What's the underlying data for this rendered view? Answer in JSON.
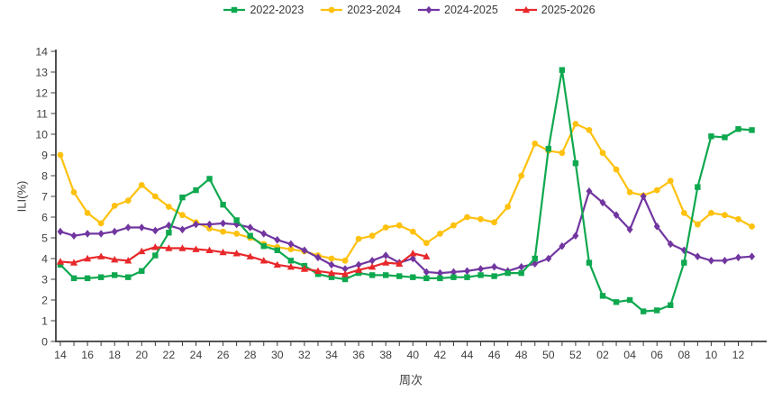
{
  "chart_data": {
    "type": "line",
    "title": "",
    "xlabel": "周次",
    "ylabel": "ILI(%)",
    "ylim": [
      0,
      14
    ],
    "y_tick_step": 1,
    "x_label_every": 2,
    "grid": false,
    "legend_position": "top-center",
    "axis_color": "#3c3c3c",
    "text_color": "#3f3f3f",
    "x_categories": [
      "14",
      "15",
      "16",
      "17",
      "18",
      "19",
      "20",
      "21",
      "22",
      "23",
      "24",
      "25",
      "26",
      "27",
      "28",
      "29",
      "30",
      "31",
      "32",
      "33",
      "34",
      "35",
      "36",
      "37",
      "38",
      "39",
      "40",
      "41",
      "42",
      "43",
      "44",
      "45",
      "46",
      "47",
      "48",
      "49",
      "50",
      "51",
      "52",
      "01",
      "02",
      "03",
      "04",
      "05",
      "06",
      "07",
      "08",
      "09",
      "10",
      "11",
      "12",
      "13"
    ],
    "series": [
      {
        "name": "2022-2023",
        "color": "#0ea84f",
        "marker": "square",
        "values": [
          3.7,
          3.05,
          3.05,
          3.1,
          3.2,
          3.1,
          3.4,
          4.15,
          5.25,
          6.95,
          7.3,
          7.85,
          6.6,
          5.85,
          5.1,
          4.6,
          4.4,
          3.9,
          3.65,
          3.25,
          3.1,
          3.0,
          3.3,
          3.2,
          3.2,
          3.15,
          3.1,
          3.05,
          3.05,
          3.1,
          3.1,
          3.2,
          3.15,
          3.3,
          3.3,
          4.0,
          9.3,
          13.1,
          8.6,
          3.8,
          2.2,
          1.9,
          2.0,
          1.45,
          1.5,
          1.75,
          3.8,
          7.45,
          9.9,
          9.85,
          10.25,
          10.2
        ]
      },
      {
        "name": "2023-2024",
        "color": "#fec10d",
        "marker": "circle",
        "values": [
          9.0,
          7.2,
          6.2,
          5.7,
          6.55,
          6.8,
          7.55,
          7.0,
          6.5,
          6.1,
          5.75,
          5.45,
          5.3,
          5.2,
          5.0,
          4.7,
          4.55,
          4.45,
          4.35,
          4.15,
          4.0,
          3.9,
          4.95,
          5.1,
          5.5,
          5.6,
          5.3,
          4.75,
          5.2,
          5.6,
          6.0,
          5.9,
          5.75,
          6.5,
          8.0,
          9.55,
          9.2,
          9.1,
          10.5,
          10.2,
          9.1,
          8.3,
          7.2,
          7.05,
          7.3,
          7.75,
          6.2,
          5.65,
          6.2,
          6.1,
          5.9,
          5.55
        ]
      },
      {
        "name": "2024-2025",
        "color": "#7136a0",
        "marker": "diamond",
        "values": [
          5.3,
          5.1,
          5.2,
          5.2,
          5.3,
          5.5,
          5.5,
          5.35,
          5.6,
          5.4,
          5.65,
          5.65,
          5.7,
          5.65,
          5.5,
          5.2,
          4.9,
          4.7,
          4.4,
          4.05,
          3.7,
          3.5,
          3.7,
          3.9,
          4.15,
          3.8,
          4.0,
          3.35,
          3.3,
          3.35,
          3.4,
          3.5,
          3.6,
          3.4,
          3.6,
          3.75,
          4.0,
          4.6,
          5.1,
          7.25,
          6.7,
          6.1,
          5.4,
          7.0,
          5.55,
          4.7,
          4.4,
          4.1,
          3.9,
          3.9,
          4.05,
          4.1
        ]
      },
      {
        "name": "2025-2026",
        "color": "#e8282b",
        "marker": "triangle",
        "values": [
          3.85,
          3.8,
          4.0,
          4.1,
          3.95,
          3.9,
          4.35,
          4.55,
          4.5,
          4.5,
          4.45,
          4.4,
          4.3,
          4.25,
          4.1,
          3.9,
          3.7,
          3.6,
          3.5,
          3.4,
          3.3,
          3.25,
          3.45,
          3.6,
          3.8,
          3.75,
          4.25,
          4.1
        ]
      }
    ]
  }
}
